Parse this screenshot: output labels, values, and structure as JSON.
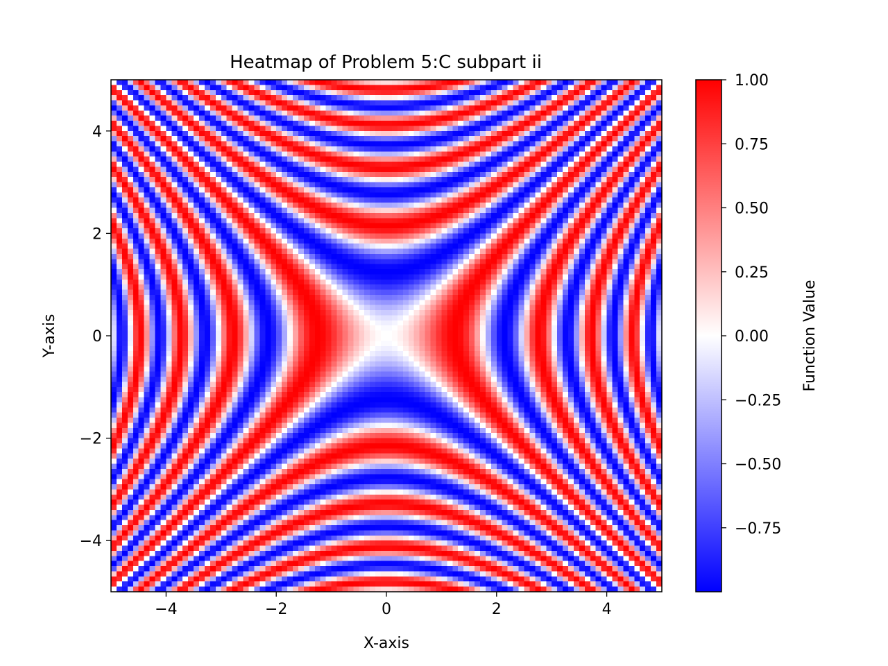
{
  "chart_data": {
    "type": "heatmap",
    "title": "Heatmap of Problem 5:C subpart ii",
    "xlabel": "X-axis",
    "ylabel": "Y-axis",
    "xlim": [
      -5,
      5
    ],
    "ylim": [
      -5,
      5
    ],
    "function": "sin(x^2 - y^2)",
    "grid_resolution": [
      100,
      100
    ],
    "xticks": [
      -4,
      -2,
      0,
      2,
      4
    ],
    "xtick_labels": [
      "−4",
      "−2",
      "0",
      "2",
      "4"
    ],
    "yticks": [
      -4,
      -2,
      0,
      2,
      4
    ],
    "ytick_labels": [
      "−4",
      "−2",
      "0",
      "2",
      "4"
    ],
    "grid": false,
    "colorbar": {
      "label": "Function Value",
      "colormap": "bwr",
      "vmin": -1.0,
      "vmax": 1.0,
      "ticks": [
        1.0,
        0.75,
        0.5,
        0.25,
        0.0,
        -0.25,
        -0.5,
        -0.75
      ],
      "tick_labels": [
        "1.00",
        "0.75",
        "0.50",
        "0.25",
        "0.00",
        "−0.25",
        "−0.50",
        "−0.75"
      ],
      "colors": {
        "low": "#0000ff",
        "mid": "#ffffff",
        "high": "#ff0000"
      }
    }
  }
}
